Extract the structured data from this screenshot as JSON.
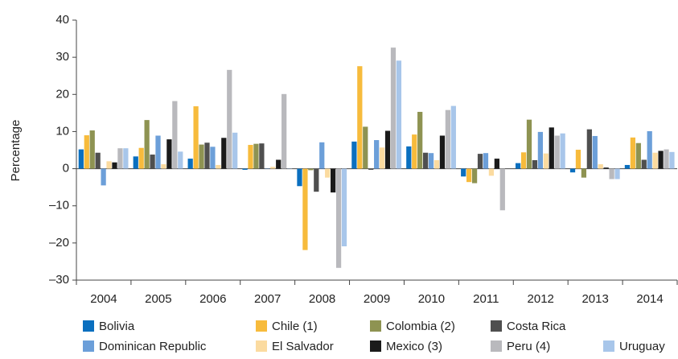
{
  "chart_data": {
    "type": "bar",
    "y_label": "Percentage",
    "categories": [
      "2004",
      "2005",
      "2006",
      "2007",
      "2008",
      "2009",
      "2010",
      "2011",
      "2012",
      "2013",
      "2014"
    ],
    "ylim": [
      -30,
      40
    ],
    "yticks": [
      {
        "value": -30,
        "label": "–30"
      },
      {
        "value": -20,
        "label": "–20"
      },
      {
        "value": -10,
        "label": "–10"
      },
      0,
      10,
      20,
      30,
      40
    ],
    "grid": false,
    "legend": "bottom",
    "series": [
      {
        "name": "Bolivia",
        "color": "#0a6fbf",
        "values": [
          5.2,
          3.3,
          2.7,
          -0.3,
          -4.7,
          7.3,
          6.0,
          -2.1,
          1.5,
          -1.0,
          1.0
        ]
      },
      {
        "name": "Chile (1)",
        "color": "#f7bb3c",
        "values": [
          9.0,
          5.6,
          16.8,
          6.4,
          -21.9,
          27.6,
          9.2,
          -3.6,
          4.4,
          5.1,
          8.4
        ]
      },
      {
        "name": "Colombia (2)",
        "color": "#8e9352",
        "values": [
          10.3,
          13.1,
          6.5,
          6.7,
          -0.4,
          11.3,
          15.3,
          -3.9,
          13.2,
          -2.4,
          6.9
        ]
      },
      {
        "name": "Costa Rica",
        "color": "#4f4f4f",
        "values": [
          4.3,
          3.8,
          7.0,
          6.8,
          -6.2,
          -0.3,
          4.3,
          4.0,
          2.3,
          10.6,
          2.4
        ]
      },
      {
        "name": "Dominican Republic",
        "color": "#6c9fd9",
        "values": [
          -4.5,
          8.9,
          5.9,
          0.1,
          7.1,
          7.7,
          4.2,
          4.2,
          9.9,
          8.8,
          10.1
        ]
      },
      {
        "name": "El Salvador",
        "color": "#fbdba0",
        "values": [
          2.0,
          1.2,
          1.0,
          0.5,
          -2.4,
          5.7,
          2.3,
          -1.9,
          4.1,
          1.2,
          4.3
        ]
      },
      {
        "name": "Mexico (3)",
        "color": "#1a1a1a",
        "values": [
          1.7,
          7.9,
          8.3,
          2.4,
          -6.4,
          10.2,
          8.9,
          2.7,
          11.1,
          0.3,
          4.8
        ]
      },
      {
        "name": "Peru (4)",
        "color": "#b9b9bd",
        "values": [
          5.5,
          18.2,
          26.6,
          20.1,
          -26.7,
          32.6,
          15.8,
          -11.2,
          8.9,
          -2.8,
          5.2
        ]
      },
      {
        "name": "Uruguay",
        "color": "#a8c6ea",
        "values": [
          5.5,
          4.6,
          9.7,
          0.1,
          -20.9,
          29.1,
          16.9,
          0.0,
          9.5,
          -2.8,
          4.5
        ]
      }
    ]
  }
}
